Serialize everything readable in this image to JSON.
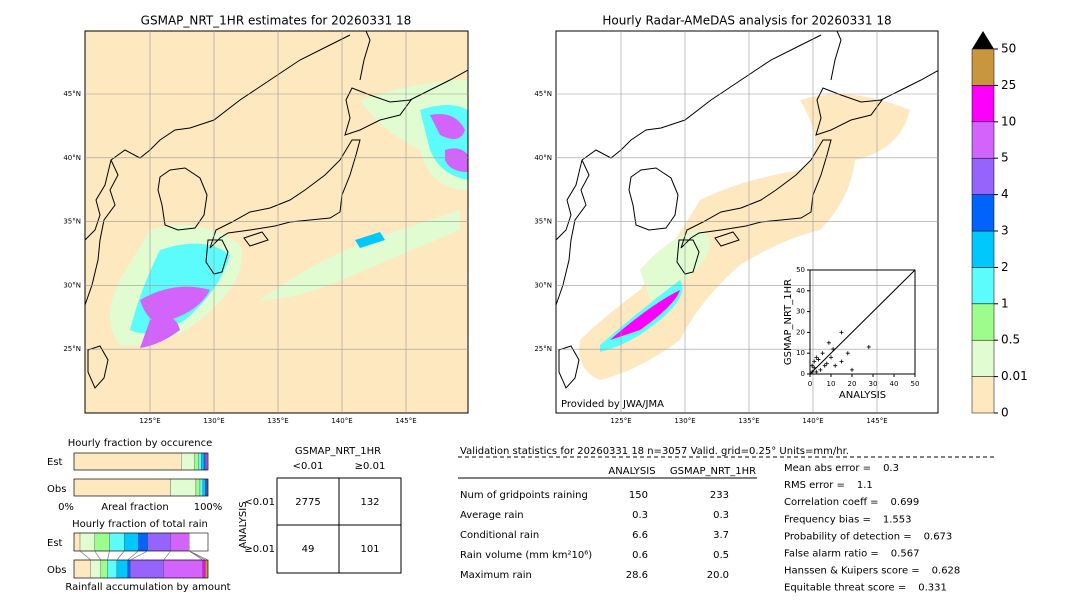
{
  "maps": [
    {
      "title": "GSMAP_NRT_1HR estimates for 20260331 18",
      "lat_labels": [
        "45°N",
        "40°N",
        "35°N",
        "30°N",
        "25°N"
      ],
      "lon_labels": [
        "125°E",
        "130°E",
        "135°E",
        "140°E",
        "145°E"
      ]
    },
    {
      "title": "Hourly Radar-AMeDAS analysis for 20260331 18",
      "lat_labels": [
        "45°N",
        "40°N",
        "35°N",
        "30°N",
        "25°N"
      ],
      "lon_labels": [
        "125°E",
        "130°E",
        "135°E",
        "140°E",
        "145°E"
      ],
      "credit": "Provided by JWA/JMA"
    }
  ],
  "colorbar": {
    "ticks": [
      0,
      0.01,
      0.5,
      1,
      2,
      3,
      4,
      5,
      10,
      25,
      50
    ],
    "colors": [
      "#fee8c0",
      "#e0fcd0",
      "#9cfc8c",
      "#5cfcfc",
      "#00c8fc",
      "#0064fc",
      "#9664fc",
      "#d264fc",
      "#fc00fc",
      "#c8963c"
    ],
    "extend_color": "#000000"
  },
  "scatter": {
    "type": "scatter",
    "xlabel": "ANALYSIS",
    "ylabel": "GSMAP_NRT_1HR",
    "xlim": [
      0,
      50
    ],
    "ylim": [
      0,
      50
    ],
    "xticks": [
      0,
      10,
      20,
      30,
      40,
      50
    ],
    "yticks": [
      0,
      10,
      20,
      30,
      40,
      50
    ],
    "x": [
      1,
      2,
      3,
      5,
      8,
      10,
      12,
      15,
      20,
      6,
      4,
      18,
      28,
      9,
      15,
      7,
      2,
      11,
      1,
      3
    ],
    "y": [
      1,
      3,
      1,
      2,
      5,
      8,
      4,
      6,
      2,
      10,
      7,
      10,
      13,
      15,
      20,
      4,
      6,
      12,
      4,
      8
    ]
  },
  "occurrence": {
    "title": "Hourly fraction by occurence",
    "est_label": "Est",
    "obs_label": "Obs",
    "left_label": "0%",
    "axis_label": "Areal fraction",
    "right_label": "100%",
    "est": [
      80,
      10,
      3,
      2,
      2,
      1,
      1,
      1
    ],
    "obs": [
      72,
      19,
      3,
      2,
      2,
      1,
      0.5,
      0.5
    ]
  },
  "rain_fraction": {
    "title": "Hourly fraction of total rain",
    "est_label": "Est",
    "obs_label": "Obs",
    "axis_label": "Rainfall accumulation by amount",
    "est": [
      4.5,
      11,
      11,
      11,
      10.5,
      7,
      17,
      14,
      0,
      0
    ],
    "obs": [
      12.5,
      7.5,
      5,
      7,
      8,
      2,
      25,
      29,
      2,
      2
    ]
  },
  "contingency": {
    "title": "GSMAP_NRT_1HR",
    "col_labels": [
      "<0.01",
      "≥0.01"
    ],
    "row_title": "ANALYSIS",
    "row_labels": [
      "<0.01",
      "≥0.01"
    ],
    "cells": [
      [
        "2775",
        "132"
      ],
      [
        "49",
        "101"
      ]
    ]
  },
  "validation": {
    "header": "Validation statistics for 20260331 18  n=3057 Valid. grid=0.25° Units=mm/hr.",
    "columns": [
      "ANALYSIS",
      "GSMAP_NRT_1HR"
    ],
    "rows": [
      [
        "Num of gridpoints raining",
        "150",
        "233"
      ],
      [
        "Average rain",
        "0.3",
        "0.3"
      ],
      [
        "Conditional rain",
        "6.6",
        "3.7"
      ],
      [
        "Rain volume (mm km²10⁶)",
        "0.6",
        "0.5"
      ],
      [
        "Maximum rain",
        "28.6",
        "20.0"
      ]
    ],
    "scores": [
      [
        "Mean abs error =",
        "0.3"
      ],
      [
        "RMS error =",
        "1.1"
      ],
      [
        "Correlation coeff =",
        "0.699"
      ],
      [
        "Frequency bias =",
        "1.553"
      ],
      [
        "Probability of detection =",
        "0.673"
      ],
      [
        "False alarm ratio =",
        "0.567"
      ],
      [
        "Hanssen & Kuipers score =",
        "0.628"
      ],
      [
        "Equitable threat score =",
        "0.331"
      ]
    ]
  }
}
